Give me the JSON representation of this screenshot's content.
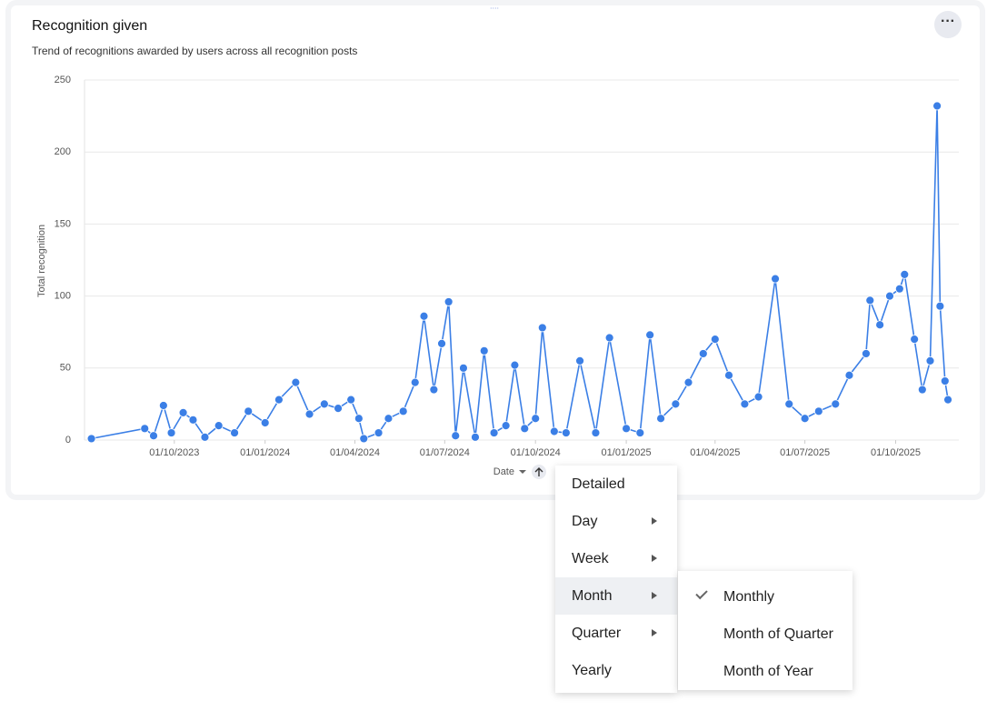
{
  "chart_data": {
    "type": "line",
    "title": "Recognition given",
    "subtitle": "Trend of recognitions awarded by users across all recognition posts",
    "y_label": "Total recognition",
    "x_label": "Date",
    "color": "#3b7fe6",
    "grid": true,
    "xlim": [
      "2023-07-02",
      "2025-12-04"
    ],
    "ylim": [
      0,
      250
    ],
    "yticks": [
      0,
      50,
      100,
      150,
      200,
      250
    ],
    "xticks": [
      {
        "value": "2023-10-01",
        "label": "01/10/2023"
      },
      {
        "value": "2024-01-01",
        "label": "01/01/2024"
      },
      {
        "value": "2024-04-01",
        "label": "01/04/2024"
      },
      {
        "value": "2024-07-01",
        "label": "01/07/2024"
      },
      {
        "value": "2024-10-01",
        "label": "01/10/2024"
      },
      {
        "value": "2025-01-01",
        "label": "01/01/2025"
      },
      {
        "value": "2025-04-01",
        "label": "01/04/2025"
      },
      {
        "value": "2025-07-01",
        "label": "01/07/2025"
      },
      {
        "value": "2025-10-01",
        "label": "01/10/2025"
      }
    ],
    "x": [
      "2023-07-09",
      "2023-09-01",
      "2023-09-10",
      "2023-09-20",
      "2023-09-28",
      "2023-10-10",
      "2023-10-20",
      "2023-11-01",
      "2023-11-15",
      "2023-12-01",
      "2023-12-15",
      "2024-01-01",
      "2024-01-15",
      "2024-02-01",
      "2024-02-15",
      "2024-03-01",
      "2024-03-15",
      "2024-03-28",
      "2024-04-05",
      "2024-04-10",
      "2024-04-25",
      "2024-05-05",
      "2024-05-20",
      "2024-06-01",
      "2024-06-10",
      "2024-06-20",
      "2024-06-28",
      "2024-07-05",
      "2024-07-12",
      "2024-07-20",
      "2024-08-01",
      "2024-08-10",
      "2024-08-20",
      "2024-09-01",
      "2024-09-10",
      "2024-09-20",
      "2024-10-01",
      "2024-10-08",
      "2024-10-20",
      "2024-11-01",
      "2024-11-15",
      "2024-12-01",
      "2024-12-15",
      "2025-01-01",
      "2025-01-15",
      "2025-01-25",
      "2025-02-05",
      "2025-02-20",
      "2025-03-05",
      "2025-03-20",
      "2025-04-01",
      "2025-04-15",
      "2025-05-01",
      "2025-05-15",
      "2025-06-01",
      "2025-06-15",
      "2025-07-01",
      "2025-07-15",
      "2025-08-01",
      "2025-08-15",
      "2025-09-01",
      "2025-09-05",
      "2025-09-15",
      "2025-09-25",
      "2025-10-05",
      "2025-10-10",
      "2025-10-20",
      "2025-10-28",
      "2025-11-05",
      "2025-11-12",
      "2025-11-15",
      "2025-11-20",
      "2025-11-23"
    ],
    "values": [
      1,
      8,
      3,
      24,
      5,
      19,
      14,
      2,
      10,
      5,
      20,
      12,
      28,
      40,
      18,
      25,
      22,
      28,
      15,
      1,
      5,
      15,
      20,
      40,
      86,
      35,
      67,
      96,
      3,
      50,
      2,
      62,
      5,
      10,
      52,
      8,
      15,
      78,
      6,
      5,
      55,
      5,
      71,
      8,
      5,
      73,
      15,
      25,
      40,
      60,
      70,
      45,
      25,
      30,
      112,
      25,
      15,
      20,
      25,
      45,
      60,
      97,
      80,
      100,
      105,
      115,
      70,
      35,
      55,
      232,
      93,
      41,
      28
    ]
  },
  "menu": {
    "items": [
      {
        "label": "Detailed",
        "submenu": false,
        "active": false
      },
      {
        "label": "Day",
        "submenu": true,
        "active": false
      },
      {
        "label": "Week",
        "submenu": true,
        "active": false
      },
      {
        "label": "Month",
        "submenu": true,
        "active": true
      },
      {
        "label": "Quarter",
        "submenu": true,
        "active": false
      },
      {
        "label": "Yearly",
        "submenu": false,
        "active": false
      }
    ],
    "submenu": [
      {
        "label": "Monthly",
        "checked": true
      },
      {
        "label": "Month of Quarter",
        "checked": false
      },
      {
        "label": "Month of Year",
        "checked": false
      }
    ]
  }
}
